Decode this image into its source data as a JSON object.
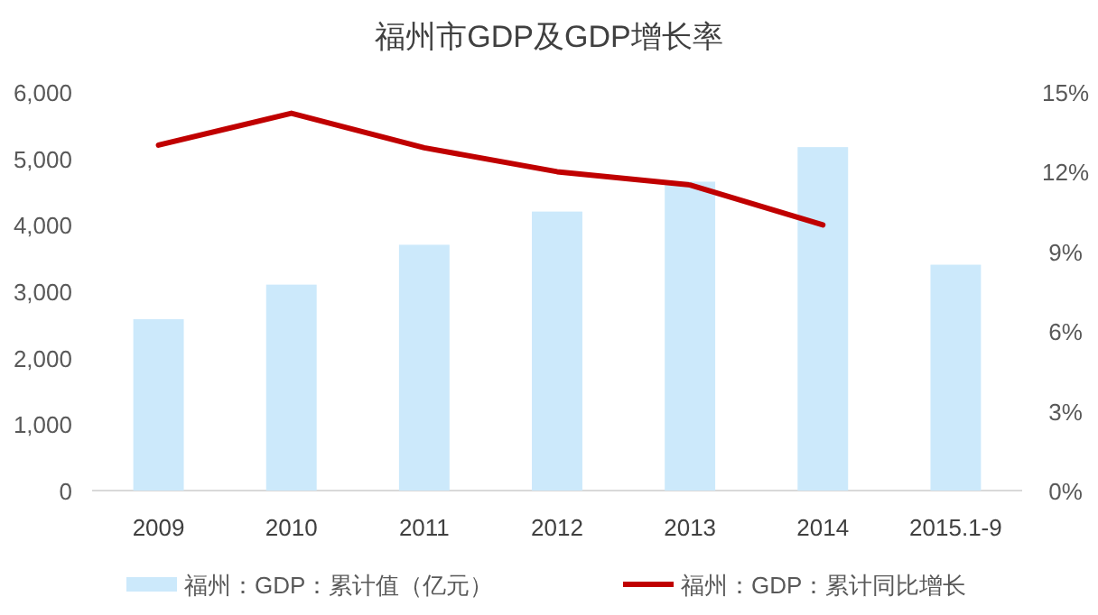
{
  "chart_data": {
    "type": "bar",
    "title": "福州市GDP及GDP增长率",
    "categories": [
      "2009",
      "2010",
      "2011",
      "2012",
      "2013",
      "2014",
      "2015.1-9"
    ],
    "series": [
      {
        "name": "福州：GDP：累计值（亿元）",
        "color": "#cce9fb",
        "values": [
          2580,
          3100,
          3700,
          4200,
          4650,
          5170,
          3400
        ]
      },
      {
        "name": "福州：GDP：累计同比增长",
        "type": "line",
        "axis": "y2",
        "color": "#c00000",
        "values": [
          13.0,
          14.2,
          12.9,
          12.0,
          11.5,
          10.0,
          null
        ]
      }
    ],
    "ylim": [
      0,
      6000
    ],
    "yticks": [
      0,
      {
        "value": 1000,
        "label": "1,000"
      },
      {
        "value": 2000,
        "label": "2,000"
      },
      {
        "value": 3000,
        "label": "3,000"
      },
      {
        "value": 4000,
        "label": "4,000"
      },
      {
        "value": 5000,
        "label": "5,000"
      },
      {
        "value": 6000,
        "label": "6,000"
      }
    ],
    "y2lim": [
      0,
      15
    ],
    "y2ticks": [
      {
        "value": 0,
        "label": "0%"
      },
      {
        "value": 3,
        "label": "3%"
      },
      {
        "value": 6,
        "label": "6%"
      },
      {
        "value": 9,
        "label": "9%"
      },
      {
        "value": 12,
        "label": "12%"
      },
      {
        "value": 15,
        "label": "15%"
      }
    ],
    "legend": "bottom",
    "marker": "none",
    "line_style": "solid"
  }
}
